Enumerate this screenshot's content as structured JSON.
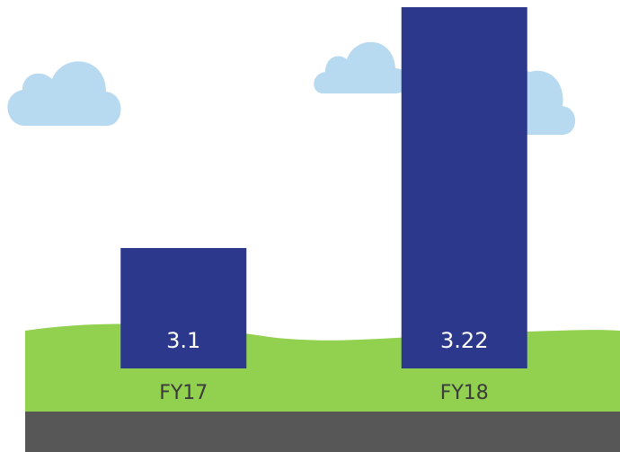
{
  "chart_data": {
    "type": "bar",
    "categories": [
      "FY17",
      "FY18"
    ],
    "values": [
      3.1,
      3.22
    ],
    "color": "#2b388c",
    "ylim": [
      3.04,
      3.22
    ]
  }
}
